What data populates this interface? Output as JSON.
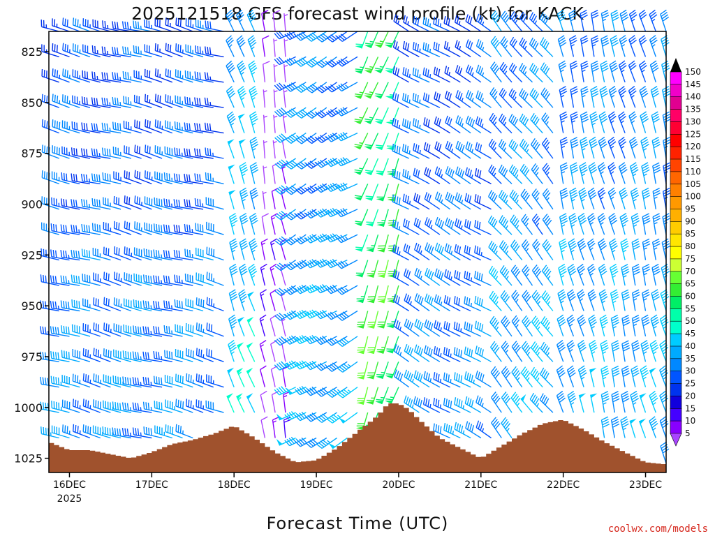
{
  "chart_data": {
    "type": "wind_barb_profile",
    "title": "2025121518 GFS forecast wind profile (kt) for KACK",
    "xlabel": "Forecast Time (UTC)",
    "ylabel": "",
    "credit": "coolwx.com/models",
    "y_axis": {
      "unit": "hPa",
      "range": [
        815,
        1032
      ],
      "inverted": true,
      "ticks": [
        "825",
        "850",
        "875",
        "900",
        "925",
        "950",
        "975",
        "1000",
        "1025"
      ]
    },
    "x_axis": {
      "unit": "hours",
      "range": [
        0,
        180
      ],
      "ticks": [
        {
          "label": "16DEC",
          "sublabel": "2025",
          "hour": 6
        },
        {
          "label": "17DEC",
          "hour": 30
        },
        {
          "label": "18DEC",
          "hour": 54
        },
        {
          "label": "19DEC",
          "hour": 78
        },
        {
          "label": "20DEC",
          "hour": 102
        },
        {
          "label": "21DEC",
          "hour": 126
        },
        {
          "label": "22DEC",
          "hour": 150
        },
        {
          "label": "23DEC",
          "hour": 174
        }
      ]
    },
    "colorbar": {
      "labels": [
        "150",
        "145",
        "140",
        "135",
        "130",
        "125",
        "120",
        "115",
        "110",
        "105",
        "100",
        "95",
        "90",
        "85",
        "80",
        "75",
        "70",
        "65",
        "60",
        "55",
        "50",
        "45",
        "40",
        "35",
        "30",
        "25",
        "20",
        "15",
        "10",
        "5"
      ],
      "colors": [
        "#ff00ff",
        "#f000c8",
        "#e00090",
        "#ff0066",
        "#ff0033",
        "#ff0000",
        "#ff2200",
        "#ff4400",
        "#ff6600",
        "#ff8000",
        "#ff9900",
        "#ffb000",
        "#ffcc00",
        "#ffe600",
        "#ffff00",
        "#ccff33",
        "#66ff33",
        "#33ee33",
        "#00ee66",
        "#00ffaa",
        "#00ffcc",
        "#00ccff",
        "#00aaff",
        "#0088ff",
        "#0055ff",
        "#0033ee",
        "#1100dd",
        "#4400ff",
        "#8800ff",
        "#aa44ff"
      ]
    },
    "terrain_color": "#a0522d",
    "surface_pressure": {
      "hours": [
        0,
        6,
        12,
        18,
        24,
        30,
        36,
        42,
        48,
        54,
        60,
        66,
        72,
        78,
        84,
        90,
        96,
        99,
        102,
        105,
        108,
        114,
        120,
        126,
        132,
        138,
        144,
        150,
        156,
        162,
        168,
        174,
        180
      ],
      "hPa": [
        1017,
        1021,
        1021,
        1023,
        1025,
        1022,
        1018,
        1016,
        1013,
        1009,
        1015,
        1022,
        1027,
        1026,
        1020,
        1012,
        1004,
        998,
        998,
        1001,
        1006,
        1015,
        1020,
        1025,
        1019,
        1013,
        1008,
        1006,
        1011,
        1017,
        1022,
        1027,
        1028
      ]
    },
    "wind_regimes": [
      {
        "hours": [
          0,
          52
        ],
        "direction_deg": 285,
        "speed_kt": 35
      },
      {
        "hours": [
          52,
          62
        ],
        "direction_deg": 340,
        "speed_kt": 45
      },
      {
        "hours": [
          62,
          72
        ],
        "direction_deg": 350,
        "speed_kt": 10
      },
      {
        "hours": [
          72,
          92
        ],
        "direction_deg": 240,
        "speed_kt": 40
      },
      {
        "hours": [
          92,
          104
        ],
        "direction_deg": 200,
        "speed_kt": 65
      },
      {
        "hours": [
          104,
          130
        ],
        "direction_deg": 300,
        "speed_kt": 35
      },
      {
        "hours": [
          130,
          150
        ],
        "direction_deg": 320,
        "speed_kt": 40
      },
      {
        "hours": [
          150,
          180
        ],
        "direction_deg": 345,
        "speed_kt": 40
      }
    ]
  }
}
